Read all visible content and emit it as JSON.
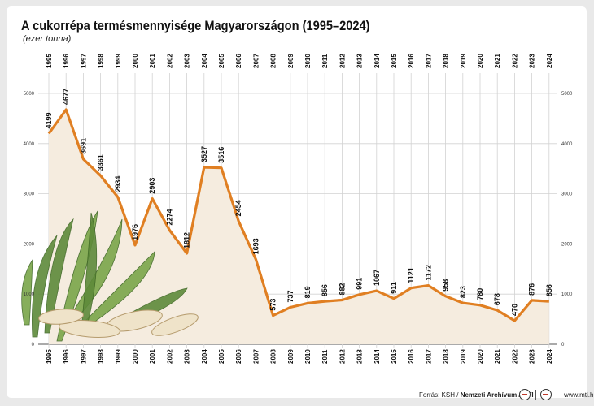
{
  "header": {
    "title": "A cukorrépa termésmennyisége Magyarországon (1995–2024)",
    "subtitle": "(ezer tonna)"
  },
  "footer": {
    "source_prefix": "Forrás: KSH / ",
    "source_bold": "Nemzeti Archívum / MTI",
    "site": "www.mti.hu"
  },
  "chart_data": {
    "type": "area",
    "title": "A cukorrépa termésmennyisége Magyarországon (1995–2024)",
    "ylabel": "(ezer tonna)",
    "xlabel": "",
    "x": [
      "1995",
      "1996",
      "1997",
      "1998",
      "1999",
      "2000",
      "2001",
      "2002",
      "2003",
      "2004",
      "2005",
      "2006",
      "2007",
      "2008",
      "2009",
      "2010",
      "2011",
      "2012",
      "2013",
      "2014",
      "2015",
      "2016",
      "2017",
      "2018",
      "2019",
      "2020",
      "2021",
      "2022",
      "2023",
      "2024"
    ],
    "series": [
      {
        "values": [
          4199,
          4677,
          3691,
          3361,
          2934,
          1976,
          2903,
          2274,
          1812,
          3527,
          3516,
          2454,
          1693,
          573,
          737,
          819,
          856,
          882,
          991,
          1067,
          911,
          1121,
          1172,
          958,
          823,
          780,
          678,
          470,
          876,
          856
        ]
      }
    ],
    "ylim": [
      0,
      5000
    ],
    "yticks": [
      0,
      1000,
      2000,
      3000,
      4000,
      5000
    ],
    "grid": true,
    "colors": {
      "line": "#e07f22",
      "area": "#f5ecdf",
      "grid": "#d2d2d2"
    }
  }
}
